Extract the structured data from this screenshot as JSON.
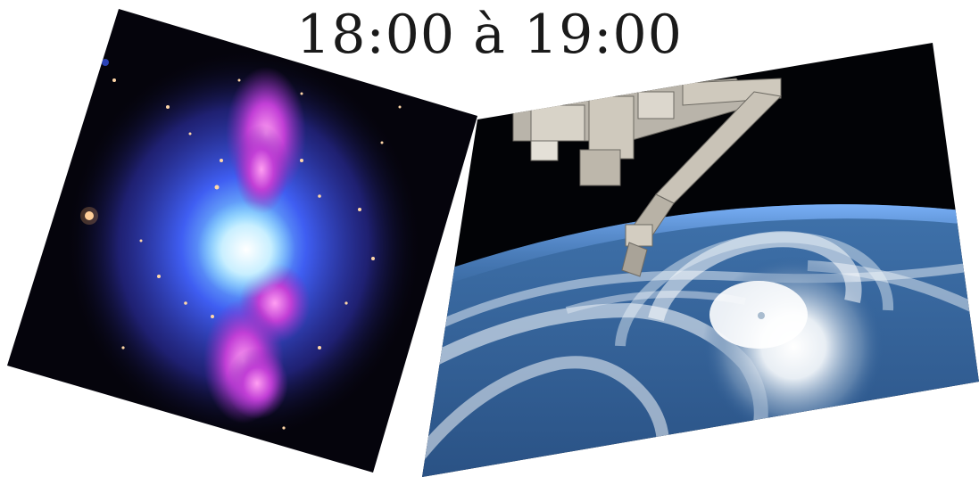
{
  "header": {
    "time_range": "18:00 à 19:00"
  },
  "photos": [
    {
      "subject": "galaxy-cluster-image",
      "colors": {
        "space": "#05040c",
        "halo": "#3a4cf0",
        "core": "#e8f6ff",
        "lobes": "#c23fd6"
      }
    },
    {
      "subject": "earth-orbit-image",
      "colors": {
        "space": "#020306",
        "ocean": "#2d5d96",
        "clouds": "#f4f7fa",
        "arm": "#cfc9bd"
      }
    }
  ]
}
